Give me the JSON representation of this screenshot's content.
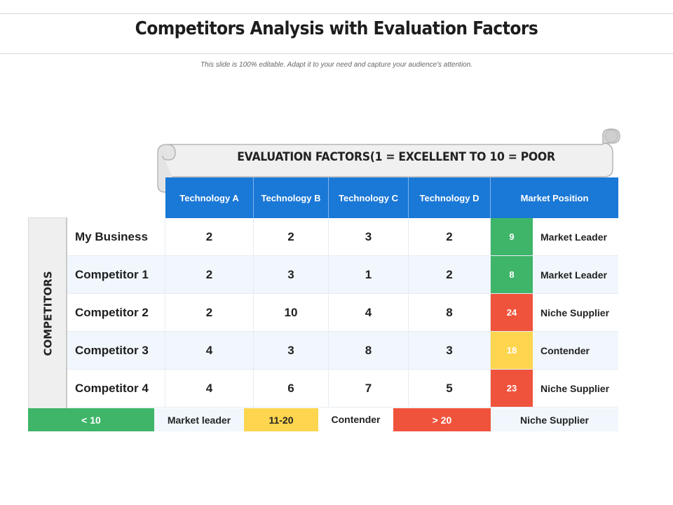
{
  "title": "Competitors Analysis with Evaluation Factors",
  "subtitle": "This slide is 100% editable. Adapt it to your need and capture your audience's attention.",
  "banner": "EVALUATION FACTORS(1 = EXCELLENT TO 10 = POOR",
  "side_label": "COMPETITORS",
  "headers": [
    "Technology A",
    "Technology B",
    "Technology C",
    "Technology D",
    "Market Position"
  ],
  "rows": [
    {
      "name": "My Business",
      "a": "2",
      "b": "2",
      "c": "3",
      "d": "2",
      "score": "9",
      "position": "Market Leader",
      "score_color": "#3fb56a"
    },
    {
      "name": "Competitor 1",
      "a": "2",
      "b": "3",
      "c": "1",
      "d": "2",
      "score": "8",
      "position": "Market Leader",
      "score_color": "#3fb56a"
    },
    {
      "name": "Competitor 2",
      "a": "2",
      "b": "10",
      "c": "4",
      "d": "8",
      "score": "24",
      "position": "Niche Supplier",
      "score_color": "#f0533c"
    },
    {
      "name": "Competitor 3",
      "a": "4",
      "b": "3",
      "c": "8",
      "d": "3",
      "score": "18",
      "position": "Contender",
      "score_color": "#fdd54e"
    },
    {
      "name": "Competitor 4",
      "a": "4",
      "b": "6",
      "c": "7",
      "d": "5",
      "score": "23",
      "position": "Niche Supplier",
      "score_color": "#f0533c"
    }
  ],
  "legend": [
    {
      "range": "< 10",
      "label": "Market leader",
      "color": "#3fb56a"
    },
    {
      "range": "11-20",
      "label": "Contender",
      "color": "#fdd54e"
    },
    {
      "range": "> 20",
      "label": "Niche Supplier",
      "color": "#f0533c"
    }
  ],
  "colors": {
    "header_blue": "#1a78d6",
    "green": "#3fb56a",
    "yellow": "#fdd54e",
    "red": "#f0533c"
  }
}
